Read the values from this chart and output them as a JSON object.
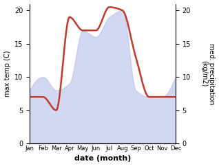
{
  "months": [
    "Jan",
    "Feb",
    "Mar",
    "Apr",
    "May",
    "Jun",
    "Jul",
    "Aug",
    "Sep",
    "Oct",
    "Nov",
    "Dec"
  ],
  "month_positions": [
    1,
    2,
    3,
    4,
    5,
    6,
    7,
    8,
    9,
    10,
    11,
    12
  ],
  "precipitation": [
    8.0,
    10.0,
    8.0,
    9.0,
    17.0,
    16.0,
    19.0,
    20.0,
    8.0,
    7.0,
    7.0,
    10.0
  ],
  "temperature": [
    7.0,
    7.0,
    5.0,
    19.0,
    17.0,
    17.0,
    20.5,
    20.0,
    13.0,
    7.0,
    7.0,
    7.0
  ],
  "precip_color": "#b0b8e8",
  "temp_color": "#c0392b",
  "ylim_left": [
    0,
    21
  ],
  "ylim_right": [
    0,
    21
  ],
  "yticks_left": [
    0,
    5,
    10,
    15,
    20
  ],
  "yticks_right": [
    0,
    5,
    10,
    15,
    20
  ],
  "xlabel": "date (month)",
  "ylabel_left": "max temp (C)",
  "ylabel_right": "med. precipitation\n(kg/m2)",
  "background_color": "#ffffff",
  "fill_alpha": 0.55
}
